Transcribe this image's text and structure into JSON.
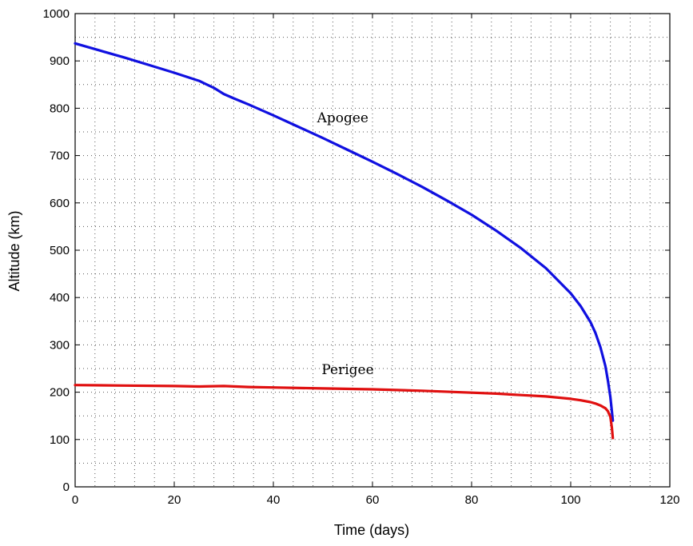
{
  "chart_data": {
    "type": "line",
    "title": "",
    "xlabel": "Time (days)",
    "ylabel": "Altitude (km)",
    "xlim": [
      0,
      120
    ],
    "ylim": [
      0,
      1000
    ],
    "xticks": [
      0,
      20,
      40,
      60,
      80,
      100,
      120
    ],
    "yticks": [
      0,
      100,
      200,
      300,
      400,
      500,
      600,
      700,
      800,
      900,
      1000
    ],
    "grid": true,
    "legend": "none",
    "series": [
      {
        "name": "Apogee",
        "color": "#1010e0",
        "x": [
          0,
          5,
          10,
          15,
          20,
          25,
          28,
          30,
          32,
          35,
          40,
          45,
          50,
          55,
          60,
          65,
          70,
          75,
          80,
          85,
          90,
          95,
          100,
          102,
          104,
          105,
          106,
          107,
          107.5,
          108,
          108.3,
          108.5
        ],
        "y": [
          937,
          922,
          907,
          891,
          875,
          858,
          843,
          830,
          821,
          808,
          785,
          761,
          737,
          712,
          687,
          661,
          634,
          605,
          575,
          541,
          504,
          462,
          409,
          382,
          348,
          325,
          295,
          255,
          225,
          190,
          160,
          140
        ]
      },
      {
        "name": "Perigee",
        "color": "#e01010",
        "x": [
          0,
          10,
          20,
          25,
          30,
          35,
          40,
          50,
          60,
          70,
          80,
          85,
          90,
          95,
          100,
          102,
          104,
          105,
          106,
          107,
          107.5,
          108,
          108.3,
          108.5
        ],
        "y": [
          215,
          214,
          213,
          212,
          213,
          211,
          210,
          208,
          206,
          203,
          199,
          197,
          194,
          191,
          186,
          183,
          179,
          176,
          172,
          166,
          160,
          148,
          125,
          103
        ]
      }
    ],
    "annotations": [
      {
        "text": "Apogee",
        "x": 54,
        "y": 770
      },
      {
        "text": "Perigee",
        "x": 55,
        "y": 238
      }
    ]
  }
}
